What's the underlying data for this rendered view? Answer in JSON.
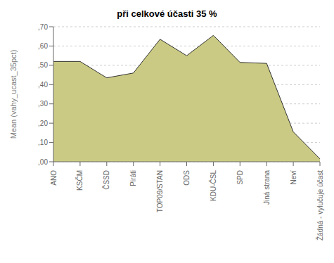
{
  "chart_data": {
    "type": "area",
    "title": "při celkové účasti 35 %",
    "ylabel": "Mean (vahy_ucast_35pct)",
    "categories": [
      "ANO",
      "KSČΜ",
      "ČSSD",
      "Piráti",
      "TOP09/STAN",
      "ODS",
      "KDU-ČSL",
      "SPD",
      "Jiná strana",
      "Neví",
      "Žádná - vylučuje účast"
    ],
    "values": [
      0.52,
      0.52,
      0.435,
      0.46,
      0.635,
      0.55,
      0.655,
      0.515,
      0.51,
      0.155,
      0.015
    ],
    "color": "#caca84",
    "ylim": [
      0.0,
      0.7
    ],
    "yticks": [
      {
        "value": 0.0,
        "label": ",00"
      },
      {
        "value": 0.1,
        "label": ",10"
      },
      {
        "value": 0.2,
        "label": ",20"
      },
      {
        "value": 0.3,
        "label": ",30"
      },
      {
        "value": 0.4,
        "label": ",40"
      },
      {
        "value": 0.5,
        "label": ",50"
      },
      {
        "value": 0.6,
        "label": ",60"
      },
      {
        "value": 0.7,
        "label": ",70"
      }
    ],
    "grid": true
  }
}
